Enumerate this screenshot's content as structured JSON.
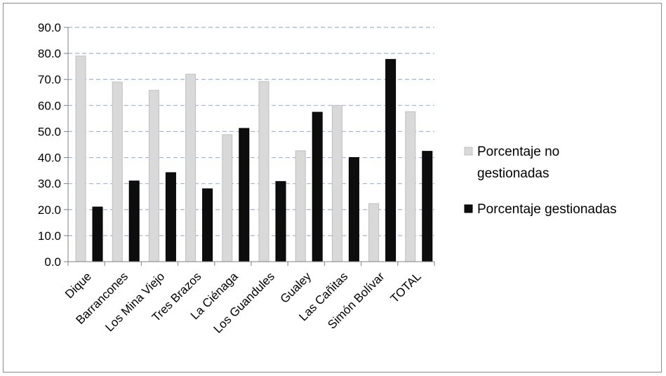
{
  "chart_data": {
    "type": "bar",
    "title": "",
    "xlabel": "",
    "ylabel": "",
    "ylim": [
      0,
      90
    ],
    "yticks": [
      "0.0",
      "10.0",
      "20.0",
      "30.0",
      "40.0",
      "50.0",
      "60.0",
      "70.0",
      "80.0",
      "90.0"
    ],
    "grid": "horizontal-dashed",
    "legend_position": "right",
    "categories": [
      "Dique",
      "Barrancones",
      "Los Mina Viejo",
      "Tres Brazos",
      "La Ciénaga",
      "Los Guandules",
      "Gualey",
      "Las Cañitas",
      "Simón Bolívar",
      "TOTAL"
    ],
    "series": [
      {
        "name": "Porcentaje no gestionadas",
        "legend_lines": [
          "Porcentaje no",
          "gestionadas"
        ],
        "color": "#d9d9d9",
        "values": [
          79.0,
          69.0,
          65.8,
          72.0,
          48.8,
          69.2,
          42.6,
          60.0,
          22.3,
          57.6
        ]
      },
      {
        "name": "Porcentaje gestionadas",
        "legend_lines": [
          "Porcentaje gestionadas"
        ],
        "color": "#0d0d0d",
        "values": [
          21.0,
          31.0,
          34.2,
          28.0,
          51.2,
          30.8,
          57.4,
          40.0,
          77.7,
          42.4
        ]
      }
    ]
  }
}
